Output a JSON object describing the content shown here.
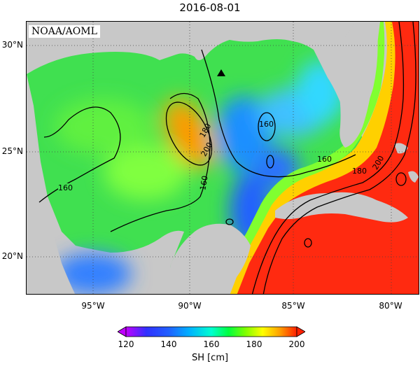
{
  "title": "2016-08-01",
  "credit": "NOAA/AOML",
  "lat_labels": [
    "30°N",
    "25°N",
    "20°N"
  ],
  "lon_labels": [
    "95°W",
    "90°W",
    "85°W",
    "80°W"
  ],
  "contour_labels": [
    "160",
    "160",
    "160",
    "160",
    "180",
    "180",
    "200",
    "200"
  ],
  "colorbar": {
    "label": "SH [cm]",
    "ticks": [
      "120",
      "140",
      "160",
      "180",
      "200"
    ],
    "colors": [
      "#c000ff",
      "#2020ff",
      "#00b0ff",
      "#00ffd0",
      "#00ff40",
      "#80ff00",
      "#ffff00",
      "#ffa000",
      "#ff3000"
    ]
  },
  "marker": "buoy-triangle",
  "colors": {
    "land": "#c8c8c8",
    "low": "#3060ff",
    "mid": "#30e060",
    "high": "#ff2010"
  }
}
